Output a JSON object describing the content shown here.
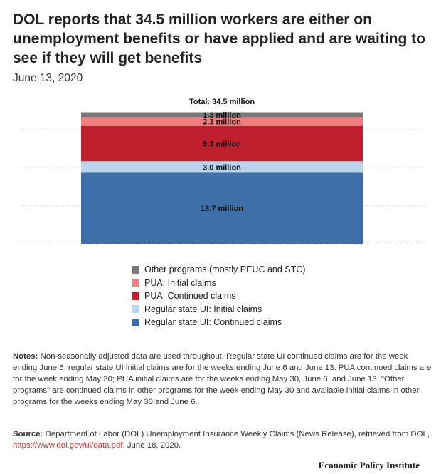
{
  "title": "DOL reports that 34.5 million workers are either on unemployment benefits or have applied and are waiting to see if they will get benefits",
  "subtitle": "June 13, 2020",
  "colors": {
    "other_programs": "#7a7a7a",
    "pua_initial": "#f08080",
    "pua_continued": "#c0202e",
    "regular_initial": "#b9d4ef",
    "regular_continued": "#3f6fa8"
  },
  "chart_data": {
    "type": "bar",
    "stacked": true,
    "total_label": "Total: 34.5 million",
    "ylim": [
      0,
      34.5
    ],
    "grid": true,
    "legend_position": "bottom",
    "categories": [
      ""
    ],
    "series": [
      {
        "name": "Regular state UI: Continued claims",
        "values": [
          18.7
        ],
        "label": "18.7 million",
        "color_key": "regular_continued"
      },
      {
        "name": "Regular state UI: Initial claims",
        "values": [
          3.0
        ],
        "label": "3.0 million",
        "color_key": "regular_initial"
      },
      {
        "name": "PUA: Continued claims",
        "values": [
          9.3
        ],
        "label": "9.3 million",
        "color_key": "pua_continued"
      },
      {
        "name": "PUA: Initial claims",
        "values": [
          2.3
        ],
        "label": "2.3 million",
        "color_key": "pua_initial"
      },
      {
        "name": "Other programs (mostly PEUC and STC)",
        "values": [
          1.3
        ],
        "label": "1.3 million",
        "color_key": "other_programs"
      }
    ]
  },
  "legend": [
    {
      "label": "Other programs (mostly PEUC and STC)",
      "color_key": "other_programs"
    },
    {
      "label": "PUA: Initial claims",
      "color_key": "pua_initial"
    },
    {
      "label": "PUA: Continued claims",
      "color_key": "pua_continued"
    },
    {
      "label": "Regular state UI: Initial claims",
      "color_key": "regular_initial"
    },
    {
      "label": "Regular state UI: Continued claims",
      "color_key": "regular_continued"
    }
  ],
  "notes": {
    "label": "Notes:",
    "text": "Non-seasonally adjusted data are used throughout. Regular state UI continued claims are for the week ending June 6; regular state UI initial claims are for the weeks ending June 6 and June 13. PUA continued claims are for the week ending May 30; PUA initial claims are for the weeks ending May 30, June 6, and June 13. \"Other programs\" are continued claims in other programs for the week ending May 30 and available initial claims in other programs for the weeks ending May  30 and June 6."
  },
  "source": {
    "label": "Source:",
    "text_before": "Department of Labor (DOL) Unemployment Insurance Weekly Claims (News Release), retrieved from DOL,",
    "link": "https://www.dol.gov/ui/data.pdf",
    "text_after": ", June 18, 2020."
  },
  "footer": "Economic Policy Institute"
}
